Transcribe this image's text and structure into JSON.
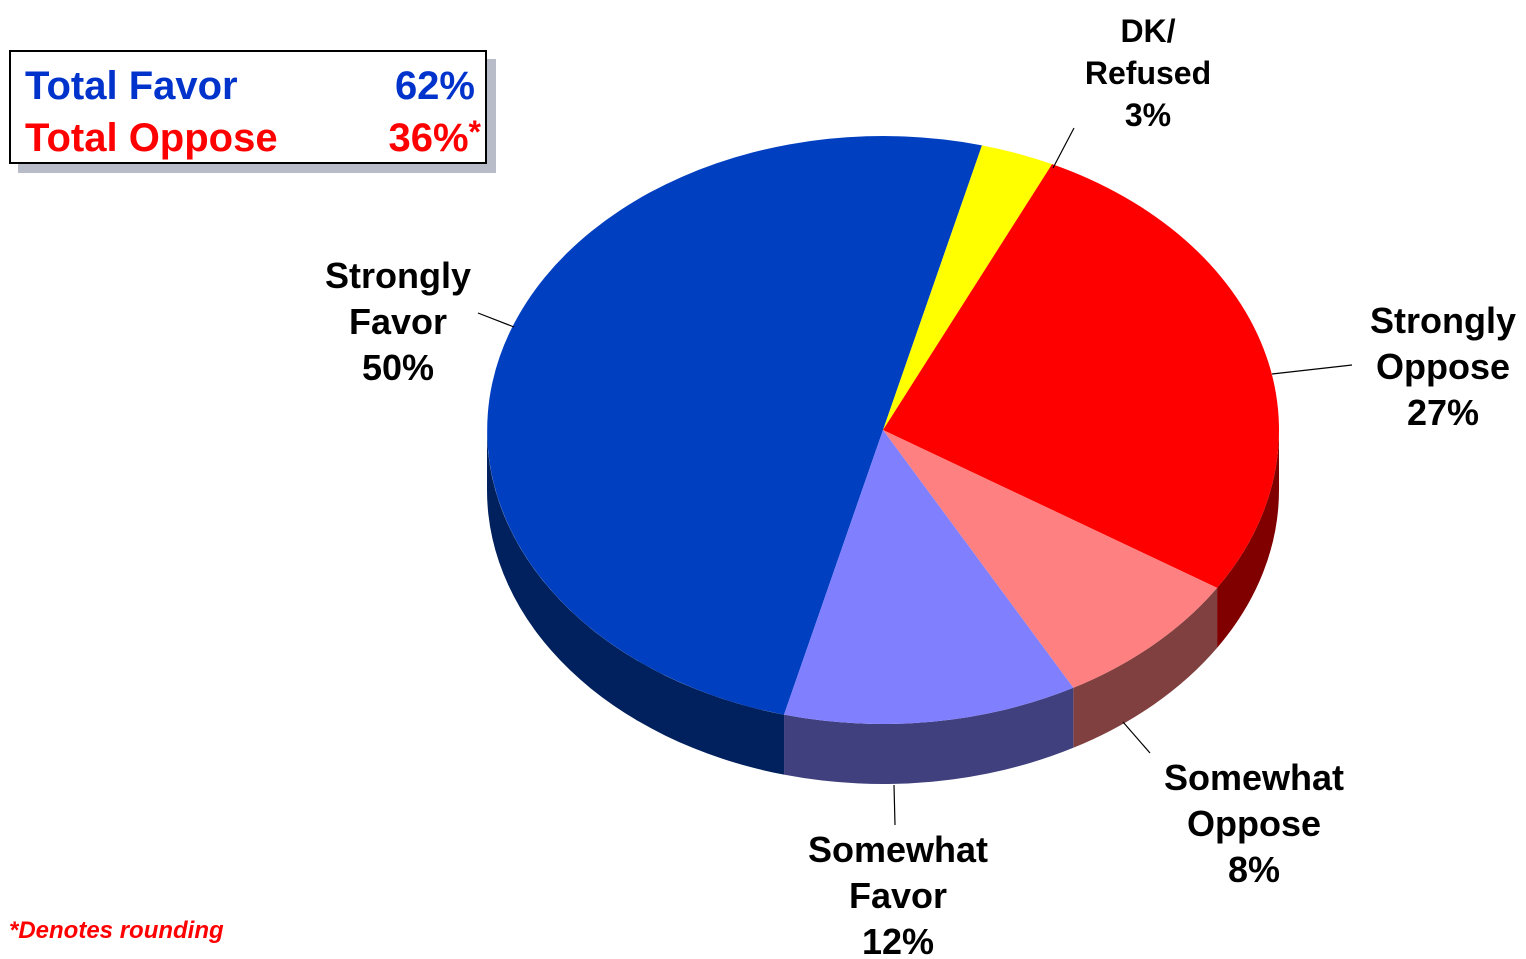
{
  "summary": {
    "favor_label": "Total Favor",
    "favor_value": "62%",
    "favor_color": "#0033cc",
    "oppose_label": "Total Oppose",
    "oppose_value": "36%",
    "oppose_asterisk": "*",
    "oppose_color": "#ff0000"
  },
  "footnote": {
    "text": "*Denotes rounding",
    "color": "#ff0000"
  },
  "chart_data": {
    "type": "pie",
    "title": "",
    "slices": [
      {
        "label": "Strongly Favor",
        "label_lines": [
          "Strongly",
          "Favor"
        ],
        "value": 50,
        "value_text": "50%",
        "color": "#003fc0",
        "side_color": "#00205e"
      },
      {
        "label": "DK/ Refused",
        "label_lines": [
          "DK/",
          "Refused"
        ],
        "value": 3,
        "value_text": "3%",
        "color": "#ffff00",
        "side_color": "#808000"
      },
      {
        "label": "Strongly Oppose",
        "label_lines": [
          "Strongly",
          "Oppose"
        ],
        "value": 27,
        "value_text": "27%",
        "color": "#ff0000",
        "side_color": "#800000"
      },
      {
        "label": "Somewhat Oppose",
        "label_lines": [
          "Somewhat",
          "Oppose"
        ],
        "value": 8,
        "value_text": "8%",
        "color": "#ff8080",
        "side_color": "#804040"
      },
      {
        "label": "Somewhat Favor",
        "label_lines": [
          "Somewhat",
          "Favor"
        ],
        "value": 12,
        "value_text": "12%",
        "color": "#8080ff",
        "side_color": "#40407e"
      }
    ]
  }
}
